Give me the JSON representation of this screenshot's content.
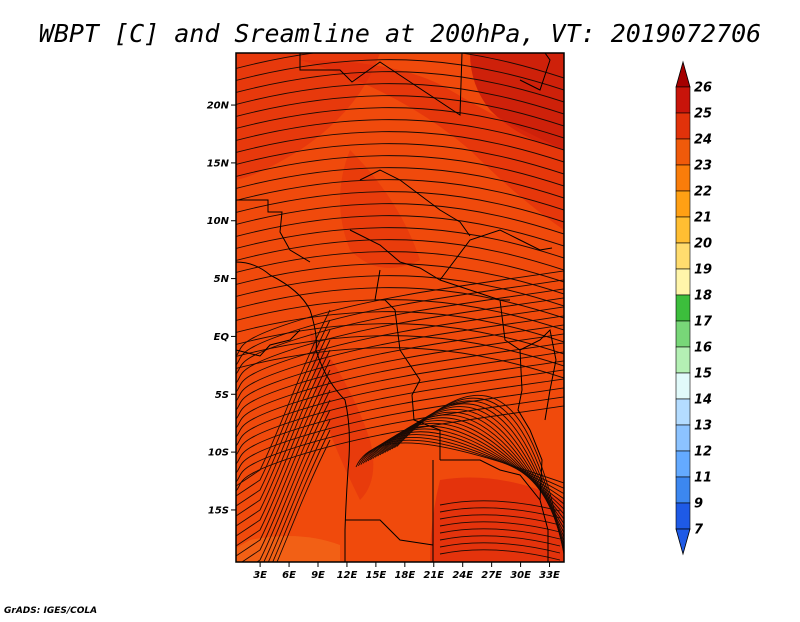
{
  "title": "WBPT [C] and Sreamline at 200hPa, VT: 2019072706",
  "credit": "GrADS: IGES/COLA",
  "map": {
    "lat_labels": [
      "20N",
      "15N",
      "10N",
      "5N",
      "EQ",
      "5S",
      "10S",
      "15S"
    ],
    "lat_values": [
      20,
      15,
      10,
      5,
      0,
      -5,
      -10,
      -15
    ],
    "lon_labels": [
      "3E",
      "6E",
      "9E",
      "12E",
      "15E",
      "18E",
      "21E",
      "24E",
      "27E",
      "30E",
      "33E"
    ],
    "lon_values": [
      3,
      6,
      9,
      12,
      15,
      18,
      21,
      24,
      27,
      30,
      33
    ],
    "lat_range": [
      -19.5,
      24.5
    ],
    "lon_range": [
      0.5,
      34.5
    ],
    "field_colors": {
      "base": "#f04a0c",
      "warm": "#e02c0c",
      "hot": "#c81a0a",
      "mild": "#f26a1a"
    }
  },
  "colorbar": {
    "levels": [
      "26",
      "25",
      "24",
      "23",
      "22",
      "21",
      "20",
      "19",
      "18",
      "17",
      "16",
      "15",
      "14",
      "13",
      "12",
      "11",
      "9",
      "7"
    ],
    "colors": [
      "#a50000",
      "#c8140a",
      "#e1320a",
      "#f05a0a",
      "#fa7d0a",
      "#ffa014",
      "#ffbe32",
      "#ffdc6e",
      "#fff5aa",
      "#3cbe3c",
      "#78d778",
      "#b4f0b4",
      "#e1fafa",
      "#b4dcff",
      "#8cc3ff",
      "#64aaff",
      "#3c87f0",
      "#1e5ae6"
    ]
  }
}
